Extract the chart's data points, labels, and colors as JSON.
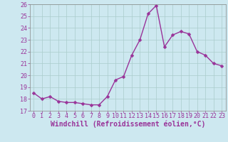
{
  "x": [
    0,
    1,
    2,
    3,
    4,
    5,
    6,
    7,
    8,
    9,
    10,
    11,
    12,
    13,
    14,
    15,
    16,
    17,
    18,
    19,
    20,
    21,
    22,
    23
  ],
  "y": [
    18.5,
    18.0,
    18.2,
    17.8,
    17.7,
    17.7,
    17.6,
    17.5,
    17.5,
    18.2,
    19.6,
    19.9,
    21.7,
    23.0,
    25.2,
    25.9,
    22.4,
    23.4,
    23.7,
    23.5,
    22.0,
    21.7,
    21.0,
    20.8
  ],
  "line_color": "#993399",
  "marker": "D",
  "marker_size": 2.5,
  "bg_color": "#cde8f0",
  "grid_color": "#aacccc",
  "xlabel": "Windchill (Refroidissement éolien,°C)",
  "ylim": [
    17,
    26
  ],
  "xlim": [
    -0.5,
    23.5
  ],
  "yticks": [
    17,
    18,
    19,
    20,
    21,
    22,
    23,
    24,
    25,
    26
  ],
  "xticks": [
    0,
    1,
    2,
    3,
    4,
    5,
    6,
    7,
    8,
    9,
    10,
    11,
    12,
    13,
    14,
    15,
    16,
    17,
    18,
    19,
    20,
    21,
    22,
    23
  ],
  "tick_color": "#993399",
  "label_color": "#993399",
  "xlabel_fontsize": 7,
  "tick_fontsize": 6,
  "linewidth": 1.0
}
